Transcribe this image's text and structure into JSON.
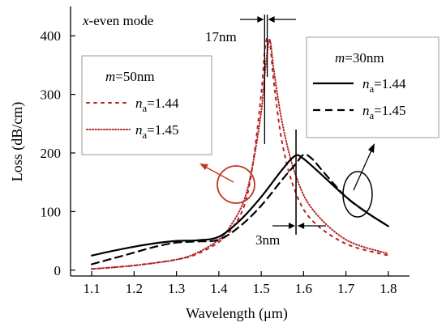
{
  "chart_data": {
    "type": "line",
    "mode_prefix": "x",
    "mode_suffix": "-even mode",
    "xlabel": "Wavelength (μm)",
    "ylabel": "Loss (dB/cm)",
    "xlim": [
      1.05,
      1.85
    ],
    "ylim": [
      -10,
      450
    ],
    "xticks": [
      1.1,
      1.2,
      1.3,
      1.4,
      1.5,
      1.6,
      1.7,
      1.8
    ],
    "yticks": [
      0,
      100,
      200,
      300,
      400
    ],
    "grid": false,
    "groups": [
      {
        "title_var": "m",
        "title_rest": "=50nm",
        "legend_position": "upper-left",
        "series": [
          {
            "name_var": "n",
            "name_sub": "a",
            "name_rest": "=1.44",
            "color": "#b22222",
            "dash": "3,6",
            "x": [
              1.1,
              1.2,
              1.3,
              1.35,
              1.4,
              1.43,
              1.46,
              1.48,
              1.5,
              1.51,
              1.52,
              1.53,
              1.55,
              1.58,
              1.62,
              1.7,
              1.8
            ],
            "y": [
              2,
              8,
              18,
              28,
              48,
              70,
              110,
              180,
              300,
              385,
              390,
              320,
              215,
              135,
              85,
              45,
              25
            ]
          },
          {
            "name_var": "n",
            "name_sub": "a",
            "name_rest": "=1.45",
            "color": "#b22222",
            "dash": "1,2.5",
            "x": [
              1.1,
              1.2,
              1.3,
              1.35,
              1.4,
              1.43,
              1.46,
              1.48,
              1.5,
              1.51,
              1.52,
              1.53,
              1.55,
              1.58,
              1.62,
              1.7,
              1.8
            ],
            "y": [
              2,
              8,
              18,
              30,
              52,
              78,
              120,
              180,
              270,
              345,
              393,
              340,
              250,
              165,
              105,
              52,
              28
            ]
          }
        ]
      },
      {
        "title_var": "m",
        "title_rest": "=30nm",
        "legend_position": "upper-right",
        "series": [
          {
            "name_var": "n",
            "name_sub": "a",
            "name_rest": "=1.44",
            "color": "#000000",
            "dash": "",
            "x": [
              1.1,
              1.15,
              1.2,
              1.25,
              1.3,
              1.35,
              1.4,
              1.45,
              1.5,
              1.55,
              1.58,
              1.6,
              1.65,
              1.7,
              1.75,
              1.8
            ],
            "y": [
              25,
              33,
              40,
              46,
              50,
              51,
              57,
              85,
              125,
              172,
              195,
              190,
              158,
              125,
              98,
              75
            ]
          },
          {
            "name_var": "n",
            "name_sub": "a",
            "name_rest": "=1.45",
            "color": "#000000",
            "dash": "9,6",
            "x": [
              1.1,
              1.15,
              1.2,
              1.25,
              1.3,
              1.35,
              1.4,
              1.45,
              1.5,
              1.55,
              1.58,
              1.6,
              1.62,
              1.65,
              1.7,
              1.75,
              1.8
            ],
            "y": [
              10,
              20,
              30,
              40,
              47,
              49,
              52,
              75,
              110,
              155,
              180,
              197,
              190,
              165,
              125,
              98,
              75
            ]
          }
        ]
      }
    ],
    "annotations": [
      {
        "text": "17nm",
        "x1": 1.51,
        "x2": 1.52,
        "y": 400
      },
      {
        "text": "3nm",
        "x1": 1.58,
        "x2": 1.59,
        "y": 22
      }
    ]
  }
}
